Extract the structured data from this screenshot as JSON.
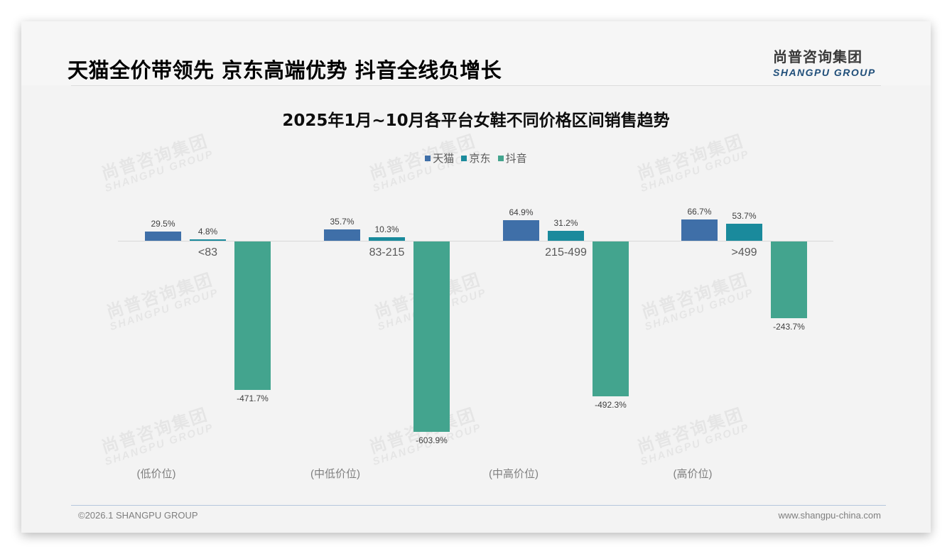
{
  "header": {
    "headline": "天猫全价带领先 京东高端优势 抖音全线负增长",
    "logo_cn": "尚普咨询集团",
    "logo_en": "SHANGPU GROUP"
  },
  "watermark": {
    "cn": "尚普咨询集团",
    "en": "SHANGPU GROUP"
  },
  "colors": {
    "tmall": "#3f6fa8",
    "jd": "#1a8a9c",
    "douyin": "#43a48e"
  },
  "legend": [
    {
      "label": "天猫",
      "color": "#3f6fa8"
    },
    {
      "label": "京东",
      "color": "#1a8a9c"
    },
    {
      "label": "抖音",
      "color": "#43a48e"
    }
  ],
  "chart_data": {
    "type": "bar",
    "title": "2025年1月~10月各平台女鞋不同价格区间销售趋势",
    "categories": [
      "<83",
      "83-215",
      "215-499",
      ">499"
    ],
    "tiers": [
      "(低价位)",
      "(中低价位)",
      "(中高价位)",
      "(高价位)"
    ],
    "series": [
      {
        "name": "天猫",
        "values": [
          29.5,
          35.7,
          64.9,
          66.7
        ],
        "labels": [
          "29.5%",
          "35.7%",
          "64.9%",
          "66.7%"
        ]
      },
      {
        "name": "京东",
        "values": [
          4.8,
          10.3,
          31.2,
          53.7
        ],
        "labels": [
          "4.8%",
          "10.3%",
          "31.2%",
          "53.7%"
        ]
      },
      {
        "name": "抖音",
        "values": [
          -471.7,
          -603.9,
          -492.3,
          -243.7
        ],
        "labels": [
          "-471.7%",
          "-603.9%",
          "-492.3%",
          "-243.7%"
        ]
      }
    ],
    "xlabel": "",
    "ylabel": "",
    "unit": "%",
    "grid": false,
    "legend_position": "top"
  },
  "footer": {
    "copyright": "©2026.1 SHANGPU GROUP",
    "website": "www.shangpu-china.com"
  }
}
